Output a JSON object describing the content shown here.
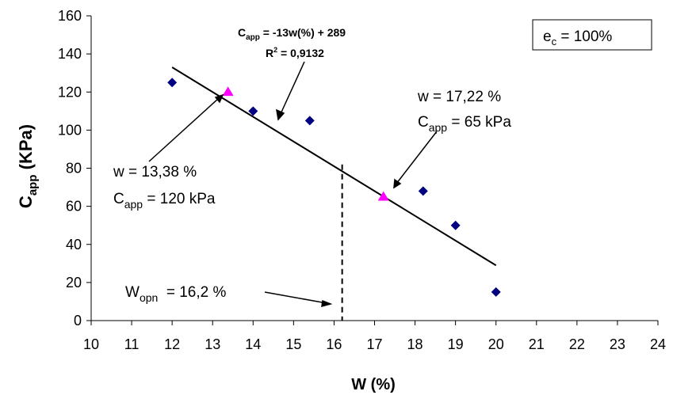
{
  "chart_data": {
    "type": "scatter",
    "xlabel": "W (%)",
    "ylabel_main": "C",
    "ylabel_sub": "app",
    "ylabel_rest": " (KPa)",
    "xlim": [
      10,
      24
    ],
    "ylim": [
      0,
      160
    ],
    "xticks": [
      "10",
      "11",
      "12",
      "13",
      "14",
      "15",
      "16",
      "17",
      "18",
      "19",
      "20",
      "21",
      "22",
      "23",
      "24"
    ],
    "yticks": [
      "0",
      "20",
      "40",
      "60",
      "80",
      "100",
      "120",
      "140",
      "160"
    ],
    "series": [
      {
        "marker": "diamond",
        "color": "#000080",
        "points": [
          {
            "x": 12.0,
            "y": 125
          },
          {
            "x": 14.0,
            "y": 110
          },
          {
            "x": 15.4,
            "y": 105
          },
          {
            "x": 18.2,
            "y": 68
          },
          {
            "x": 19.0,
            "y": 50
          },
          {
            "x": 20.0,
            "y": 15
          }
        ]
      },
      {
        "marker": "triangle",
        "color": "#ff00ff",
        "points": [
          {
            "x": 13.38,
            "y": 120
          },
          {
            "x": 17.22,
            "y": 65
          }
        ]
      }
    ],
    "trendline": {
      "slope": -13,
      "intercept": 289,
      "x_start": 12.0,
      "x_end": 20.0,
      "color": "#000000"
    },
    "vertical_line": {
      "x": 16.2,
      "y_top": 82,
      "style": "dashed"
    },
    "equation": {
      "line1_prefix": "C",
      "line1_sub": "app",
      "line1_rest": " = -13w(%) + 289",
      "line2_prefix": "R",
      "line2_sup": "2",
      "line2_rest": " = 0,9132"
    },
    "legend_box": {
      "prefix": "e",
      "sub": "c",
      "rest": " = 100%",
      "placement": "top-right"
    },
    "annotations": {
      "left_line1": "w = 13,38 %",
      "left_line2_prefix": "C",
      "left_line2_sub": "app",
      "left_line2_rest": " = 120 kPa",
      "right_line1": "w = 17,22 %",
      "right_line2_prefix": "C",
      "right_line2_sub": "app",
      "right_line2_rest": " = 65 kPa",
      "wopn_prefix": "W",
      "wopn_sub": "opn",
      "wopn_rest": "  = 16,2 %"
    }
  }
}
